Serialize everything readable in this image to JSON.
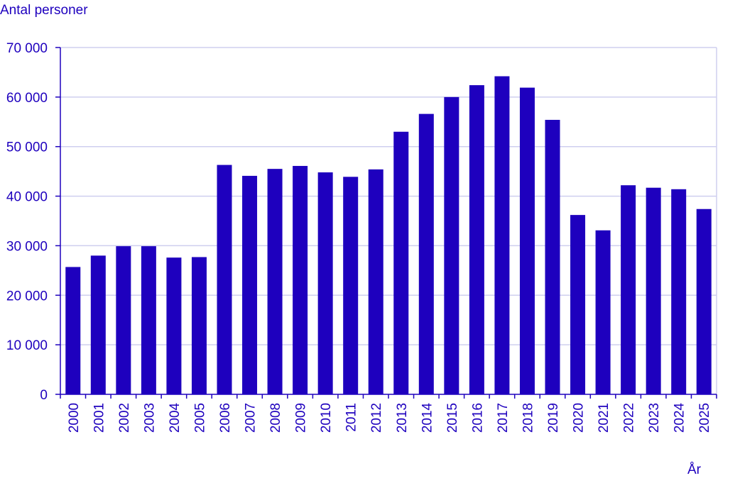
{
  "chart_data": {
    "type": "bar",
    "ylabel": "Antal personer",
    "xlabel": "År",
    "ylim": [
      0,
      70000
    ],
    "yticks": [
      0,
      10000,
      20000,
      30000,
      40000,
      50000,
      60000,
      70000
    ],
    "ytick_labels": [
      "0",
      "10 000",
      "20 000",
      "30 000",
      "40 000",
      "50 000",
      "60 000",
      "70 000"
    ],
    "categories": [
      "2000",
      "2001",
      "2002",
      "2003",
      "2004",
      "2005",
      "2006",
      "2007",
      "2008",
      "2009",
      "2010",
      "2011",
      "2012",
      "2013",
      "2014",
      "2015",
      "2016",
      "2017",
      "2018",
      "2019",
      "2020",
      "2021",
      "2022",
      "2023",
      "2024",
      "2025"
    ],
    "values": [
      25700,
      28000,
      29900,
      29900,
      27600,
      27700,
      46300,
      44100,
      45500,
      46100,
      44800,
      43900,
      45400,
      53000,
      56600,
      60000,
      62400,
      64200,
      61900,
      55400,
      36200,
      33100,
      42200,
      41700,
      41400,
      37400
    ],
    "grid": true,
    "bar_color": "#1e00be",
    "text_color": "#1e00be",
    "grid_color": "#cfcfef"
  }
}
